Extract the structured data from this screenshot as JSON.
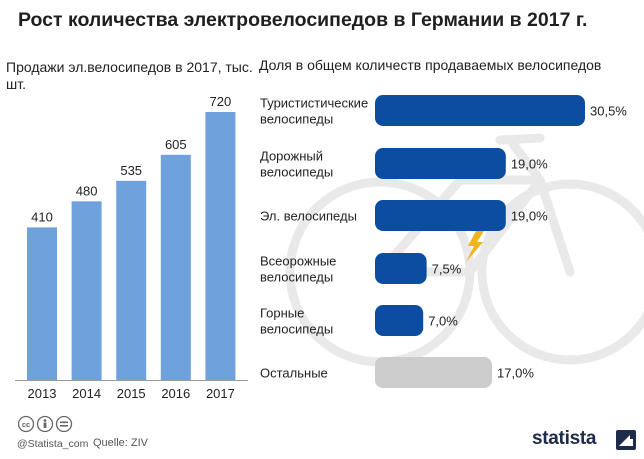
{
  "header": {
    "title": "Рост количества электровелосипедов в Германии в 2017 г."
  },
  "left_panel": {
    "subtitle": "Продажи эл.велосипедов в 2017, тыс. шт."
  },
  "right_panel": {
    "subtitle": "Доля в общем количеств продаваемых велосипедов"
  },
  "footer": {
    "handle": "@Statista_com",
    "source": "Quelle: ZIV",
    "brand": "statista"
  },
  "colors": {
    "bar_left": "#6fa1dd",
    "bar_right": "#0c4da2",
    "bar_other": "#cccccc",
    "background_bike": "#e9e9e9",
    "bolt": "#f2b31b"
  },
  "icons": [
    "cc-icon",
    "attribution-icon",
    "equals-icon",
    "bicycle-illustration",
    "lightning-bolt-icon",
    "statista-logo-icon"
  ],
  "chart_data": [
    {
      "type": "bar",
      "categories": [
        "2013",
        "2014",
        "2015",
        "2016",
        "2017"
      ],
      "values": [
        410,
        480,
        535,
        605,
        720
      ],
      "title": "Продажи эл.велосипедов в 2017, тыс. шт.",
      "xlabel": "",
      "ylabel": "",
      "ylim": [
        0,
        720
      ]
    },
    {
      "type": "bar",
      "orientation": "horizontal",
      "categories": [
        "Туристистические велосипеды",
        "Дорожный велосипеды",
        "Эл. велосипеды",
        "Всеорожные велосипеды",
        "Горные велосипеды",
        "Остальные"
      ],
      "values": [
        30.5,
        19.0,
        19.0,
        7.5,
        7.0,
        17.0
      ],
      "labels": [
        "30,5%",
        "19,0%",
        "19,0%",
        "7,5%",
        "7,0%",
        "17,0%"
      ],
      "title": "Доля в общем количеств продаваемых велосипедов",
      "xlim": [
        0,
        30.5
      ]
    }
  ]
}
